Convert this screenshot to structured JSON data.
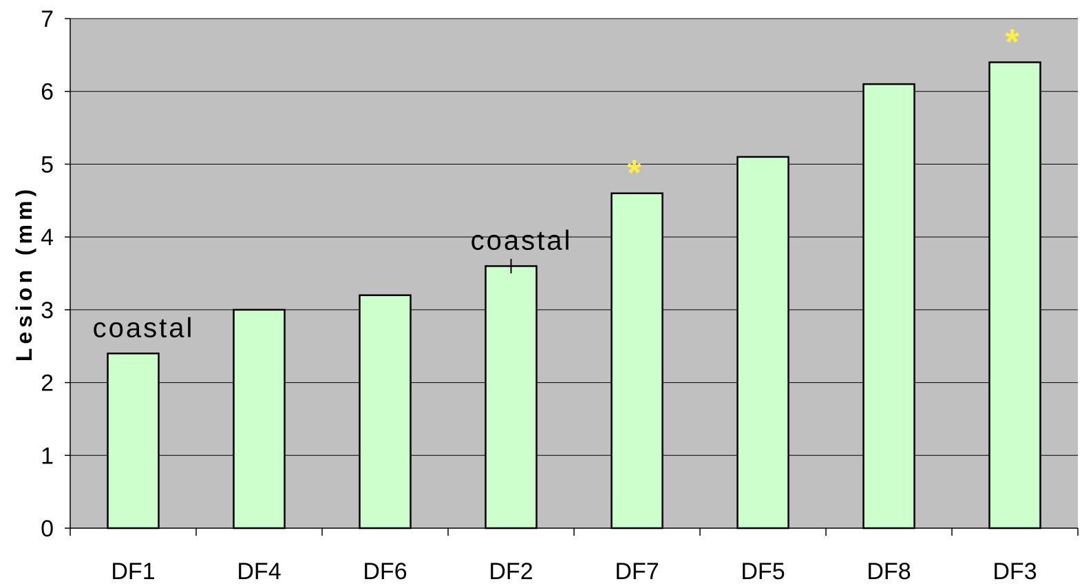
{
  "chart_data": {
    "type": "bar",
    "categories": [
      "DF1",
      "DF4",
      "DF6",
      "DF2",
      "DF7",
      "DF5",
      "DF8",
      "DF3"
    ],
    "values": [
      2.4,
      3.0,
      3.2,
      3.6,
      4.6,
      5.1,
      6.1,
      6.4
    ],
    "ylabel": "Lesion (mm)",
    "xlabel": "",
    "ylim": [
      0,
      7
    ],
    "yticks": [
      0,
      1,
      2,
      3,
      4,
      5,
      6,
      7
    ],
    "grid": true,
    "legend": "none",
    "colors": {
      "plot_background": "#c0c0c0",
      "bar_fill": "#ccffcc",
      "bar_stroke": "#000000",
      "gridline": "#000000",
      "star": "#ffee44"
    },
    "annotations": [
      {
        "category": "DF1",
        "text": "coastal",
        "kind": "label"
      },
      {
        "category": "DF2",
        "text": "coastal",
        "kind": "label"
      },
      {
        "category": "DF7",
        "text": "*",
        "kind": "significance"
      },
      {
        "category": "DF3",
        "text": "*",
        "kind": "significance"
      }
    ],
    "error_bars": [
      {
        "category": "DF2",
        "low": 3.5,
        "high": 3.7
      }
    ]
  }
}
